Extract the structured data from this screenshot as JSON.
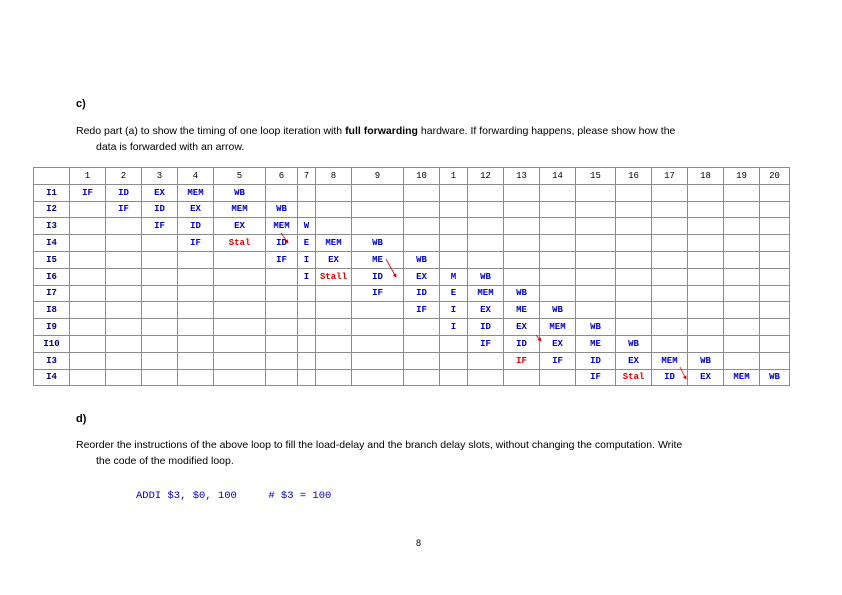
{
  "section_c": {
    "heading": "c)",
    "text_before": "Redo part (a) to show the timing of one loop iteration with ",
    "text_bold": "full forwarding",
    "text_after": " hardware. If forwarding happens, please show how the",
    "text_cont": "data is forwarded with an arrow."
  },
  "pipeline": {
    "columns": [
      "",
      "1",
      "2",
      "3",
      "4",
      "5",
      "6",
      "7",
      "8",
      "9",
      "10",
      "1",
      "12",
      "13",
      "14",
      "15",
      "16",
      "17",
      "18",
      "19",
      "20"
    ],
    "rows": [
      {
        "label": "I1",
        "cells": [
          "IF",
          "ID",
          "EX",
          "MEM",
          "WB",
          "",
          "",
          "",
          "",
          "",
          "",
          "",
          "",
          "",
          "",
          "",
          "",
          "",
          "",
          ""
        ]
      },
      {
        "label": "I2",
        "cells": [
          "",
          "IF",
          "ID",
          "EX",
          "MEM",
          "WB",
          "",
          "",
          "",
          "",
          "",
          "",
          "",
          "",
          "",
          "",
          "",
          "",
          "",
          ""
        ]
      },
      {
        "label": "I3",
        "cells": [
          "",
          "",
          "IF",
          "ID",
          "EX",
          "MEM",
          "W",
          "",
          "",
          "",
          "",
          "",
          "",
          "",
          "",
          "",
          "",
          "",
          "",
          ""
        ]
      },
      {
        "label": "I4",
        "cells": [
          "",
          "",
          "",
          "IF",
          "Stal",
          "ID",
          "E",
          "MEM",
          "WB",
          "",
          "",
          "",
          "",
          "",
          "",
          "",
          "",
          "",
          "",
          ""
        ]
      },
      {
        "label": "I5",
        "cells": [
          "",
          "",
          "",
          "",
          "",
          "IF",
          "I",
          "EX",
          "ME",
          "WB",
          "",
          "",
          "",
          "",
          "",
          "",
          "",
          "",
          "",
          ""
        ]
      },
      {
        "label": "I6",
        "cells": [
          "",
          "",
          "",
          "",
          "",
          "",
          "I",
          "Stall",
          "ID",
          "EX",
          "M",
          "WB",
          "",
          "",
          "",
          "",
          "",
          "",
          "",
          ""
        ]
      },
      {
        "label": "I7",
        "cells": [
          "",
          "",
          "",
          "",
          "",
          "",
          "",
          "",
          "IF",
          "ID",
          "E",
          "MEM",
          "WB",
          "",
          "",
          "",
          "",
          "",
          "",
          ""
        ]
      },
      {
        "label": "I8",
        "cells": [
          "",
          "",
          "",
          "",
          "",
          "",
          "",
          "",
          "",
          "IF",
          "I",
          "EX",
          "ME",
          "WB",
          "",
          "",
          "",
          "",
          "",
          ""
        ]
      },
      {
        "label": "I9",
        "cells": [
          "",
          "",
          "",
          "",
          "",
          "",
          "",
          "",
          "",
          "",
          "I",
          "ID",
          "EX",
          "MEM",
          "WB",
          "",
          "",
          "",
          "",
          ""
        ]
      },
      {
        "label": "I10",
        "cells": [
          "",
          "",
          "",
          "",
          "",
          "",
          "",
          "",
          "",
          "",
          "",
          "IF",
          "ID",
          "EX",
          "ME",
          "WB",
          "",
          "",
          "",
          ""
        ]
      },
      {
        "label": "I3",
        "cells": [
          "",
          "",
          "",
          "",
          "",
          "",
          "",
          "",
          "",
          "",
          "",
          "",
          "IF",
          "IF",
          "ID",
          "EX",
          "MEM",
          "WB",
          "",
          ""
        ]
      },
      {
        "label": "I4",
        "cells": [
          "",
          "",
          "",
          "",
          "",
          "",
          "",
          "",
          "",
          "",
          "",
          "",
          "",
          "",
          "IF",
          "Stal",
          "ID",
          "EX",
          "MEM",
          "WB"
        ]
      }
    ],
    "red_cells": [
      "3-4",
      "5-7",
      "10-12",
      "11-15"
    ],
    "stall_color": "#e00000",
    "stage_color": "#0000cc",
    "arrow_color": "#e00000"
  },
  "section_d": {
    "heading": "d)",
    "line1": "Reorder the instructions of the above loop to fill the load-delay and the branch delay slots, without changing the computation. Write",
    "line2": "the code of the modified loop.",
    "code": "ADDI $3, $0, 100     # $3 = 100"
  },
  "page_number": "8"
}
